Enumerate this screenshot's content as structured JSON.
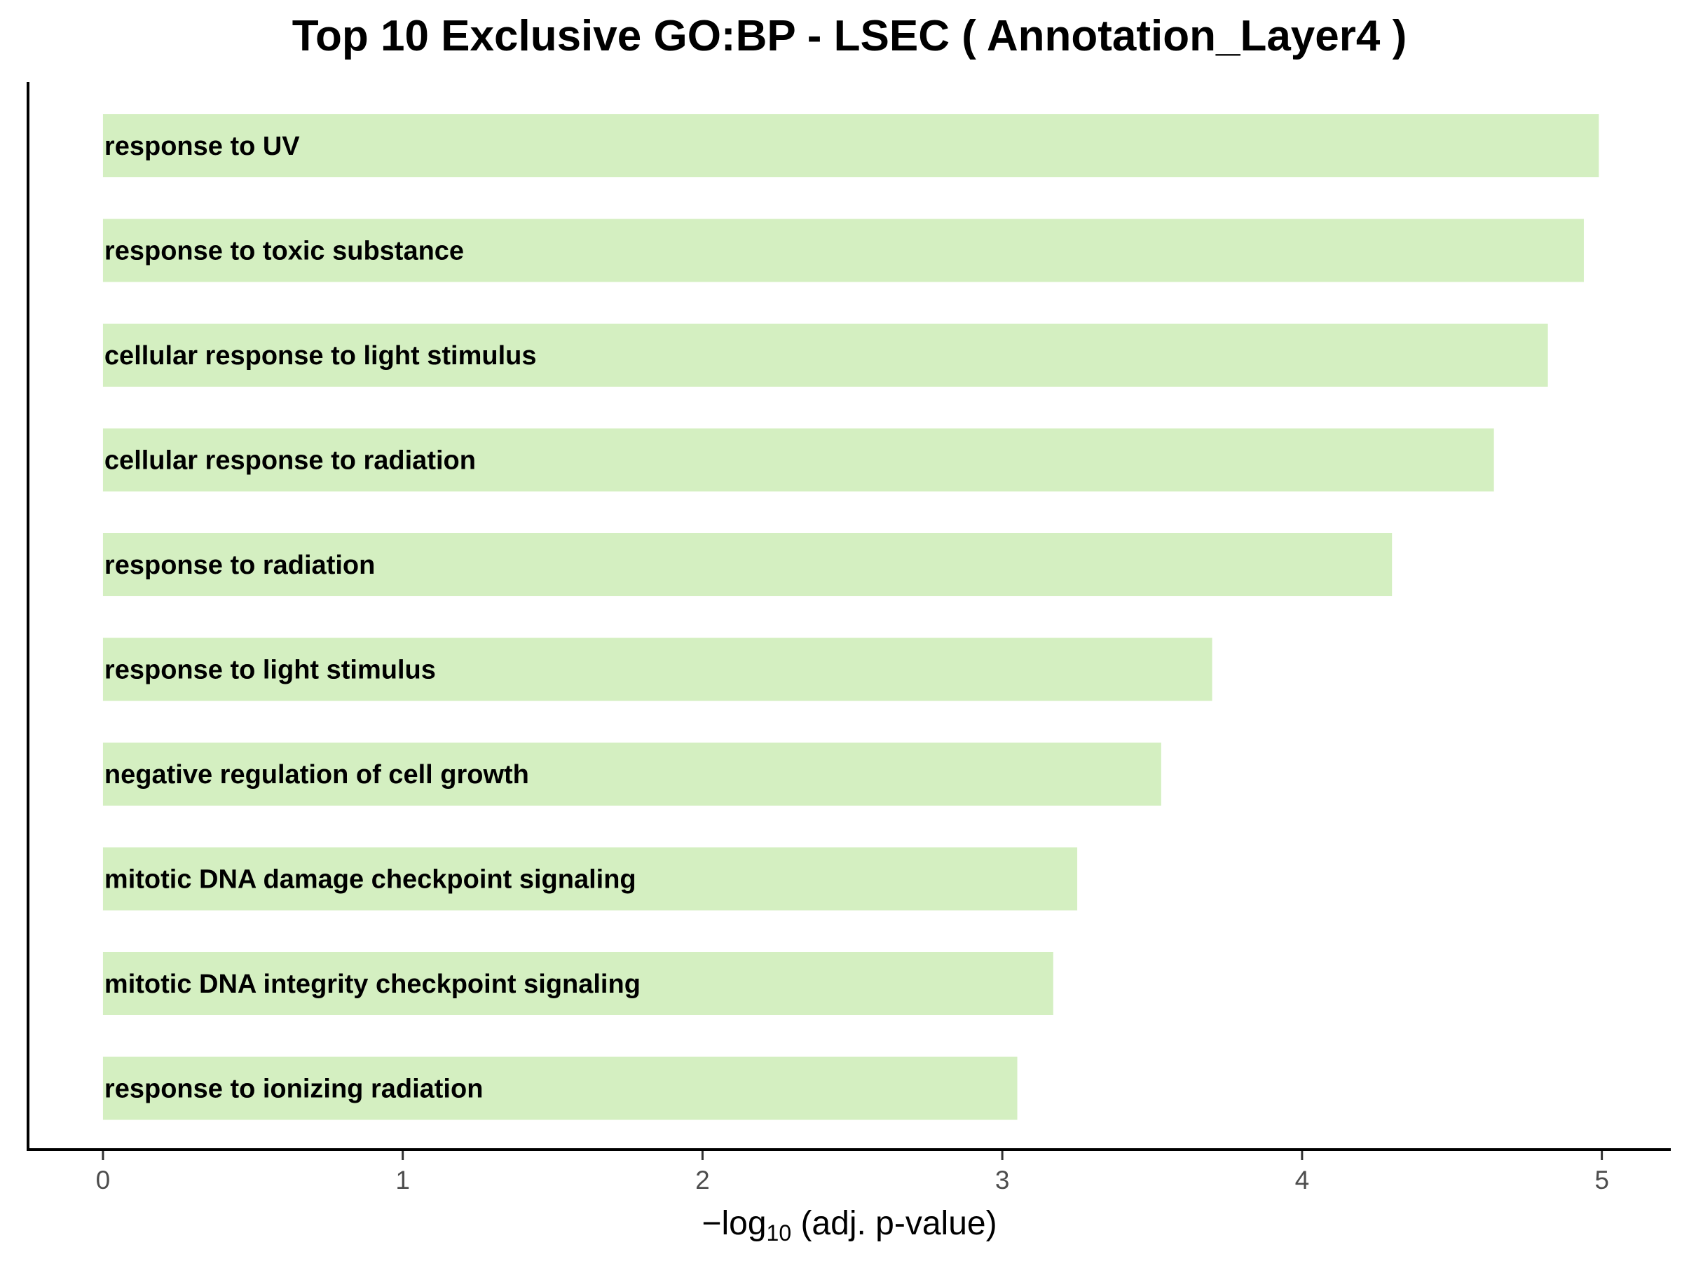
{
  "chart_data": {
    "type": "bar",
    "orientation": "horizontal",
    "title": "Top 10 Exclusive GO:BP - LSEC ( Annotation_Layer4 )",
    "xlabel_prefix": "−log",
    "xlabel_subscript": "10",
    "xlabel_suffix": " (adj. p-value)",
    "ylabel": "",
    "xlim": [
      -0.25,
      5.23
    ],
    "xticks": [
      "0",
      "1",
      "2",
      "3",
      "4",
      "5"
    ],
    "bar_color": "#d4efc1",
    "grid": false,
    "categories": [
      "response to UV",
      "response to toxic substance",
      "cellular response to light stimulus",
      "cellular response to radiation",
      "response to radiation",
      "response to light stimulus",
      "negative regulation of cell growth",
      "mitotic DNA damage checkpoint signaling",
      "mitotic DNA integrity checkpoint signaling",
      "response to ionizing radiation"
    ],
    "values": [
      4.99,
      4.94,
      4.82,
      4.64,
      4.3,
      3.7,
      3.53,
      3.25,
      3.17,
      3.05
    ]
  }
}
